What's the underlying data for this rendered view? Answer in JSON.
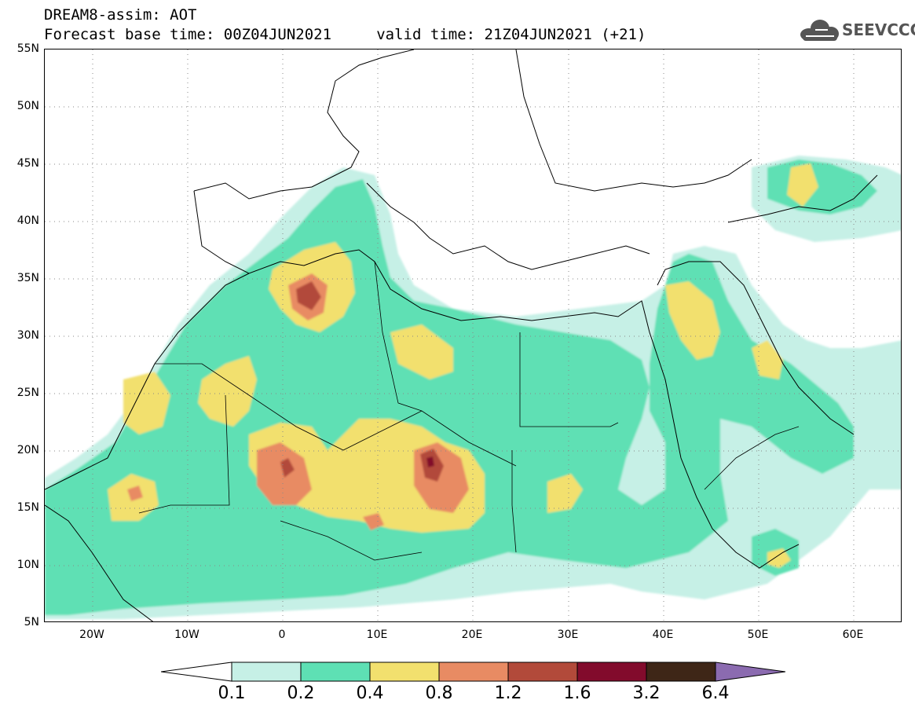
{
  "header": {
    "title": "DREAM8-assim: AOT",
    "base_time_line": "Forecast base time: 00Z04JUN2021     valid time: 21Z04JUN2021 (+21)"
  },
  "logo": {
    "text": "SEEVCCC",
    "icon": "cloud-logo-icon"
  },
  "map": {
    "lat_labels": [
      "55N",
      "50N",
      "45N",
      "40N",
      "35N",
      "30N",
      "25N",
      "20N",
      "15N",
      "10N",
      "5N"
    ],
    "lon_labels": [
      "20W",
      "10W",
      "0",
      "10E",
      "20E",
      "30E",
      "40E",
      "50E",
      "60E"
    ],
    "lat_range": [
      5,
      55
    ],
    "lon_range": [
      -25,
      65
    ],
    "grid": "dotted",
    "quantity": "AOT"
  },
  "colorbar": {
    "levels": [
      "0.1",
      "0.2",
      "0.4",
      "0.8",
      "1.2",
      "1.6",
      "3.2",
      "6.4"
    ],
    "colors": [
      "#c6f0e6",
      "#5ee0b4",
      "#f2e06e",
      "#e88b63",
      "#b24a3a",
      "#820b2c",
      "#3e2617",
      "#8b6bb0"
    ]
  }
}
